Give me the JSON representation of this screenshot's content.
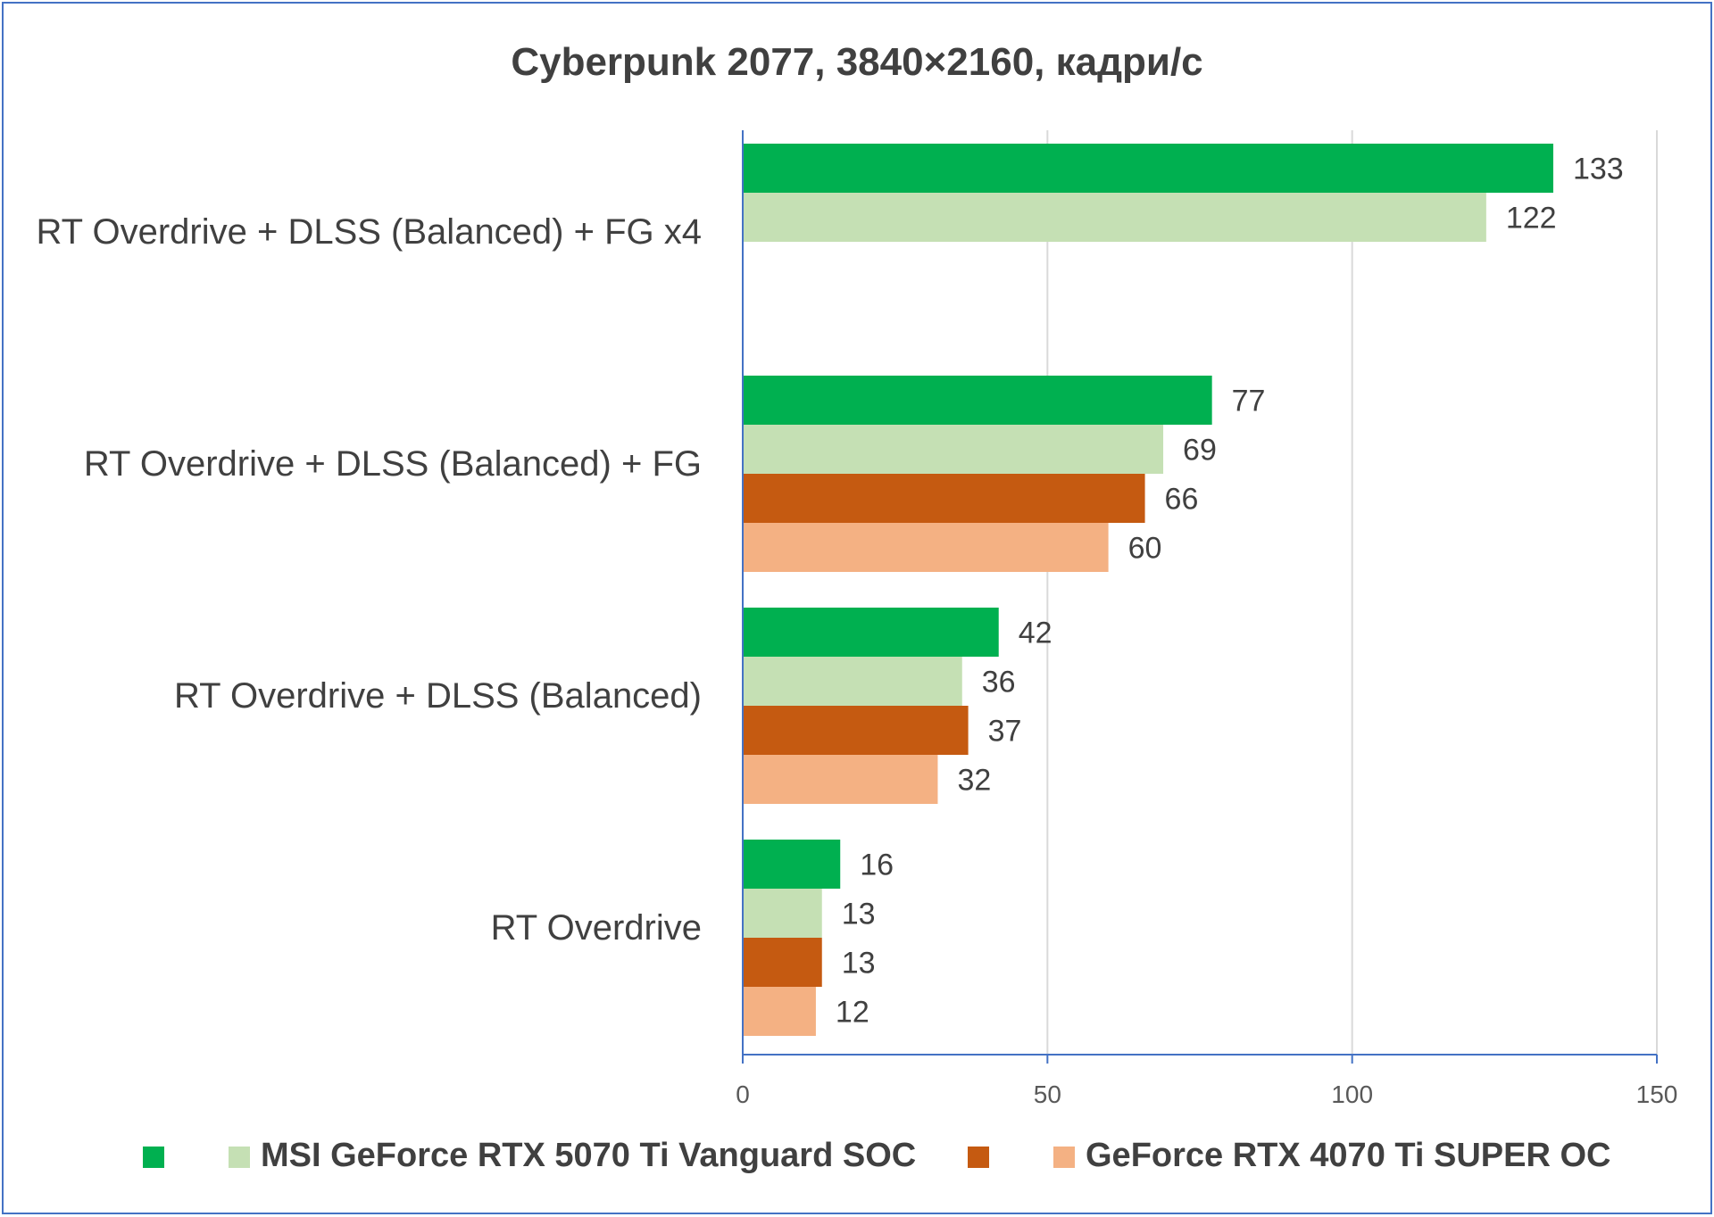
{
  "chart_data": {
    "type": "bar",
    "orientation": "horizontal",
    "title": "Cyberpunk 2077, 3840×2160, кадри/с",
    "categories": [
      "RT Overdrive + DLSS (Balanced) + FG x4",
      "RT Overdrive + DLSS (Balanced) + FG",
      "RT Overdrive + DLSS (Balanced)",
      "RT Overdrive"
    ],
    "series": [
      {
        "color": "#00b050",
        "values": [
          133,
          77,
          42,
          16
        ]
      },
      {
        "name": "MSI GeForce RTX 5070 Ti Vanguard SOC",
        "color": "#c5e0b4",
        "values": [
          122,
          69,
          36,
          13
        ]
      },
      {
        "color": "#c55a11",
        "values": [
          null,
          66,
          37,
          13
        ]
      },
      {
        "name": "GeForce RTX 4070 Ti SUPER OC",
        "color": "#f4b183",
        "values": [
          null,
          60,
          32,
          12
        ]
      }
    ],
    "xlim": [
      0,
      150
    ],
    "xticks": [
      0,
      50,
      100,
      150
    ],
    "grid": true,
    "legend_position": "bottom"
  }
}
